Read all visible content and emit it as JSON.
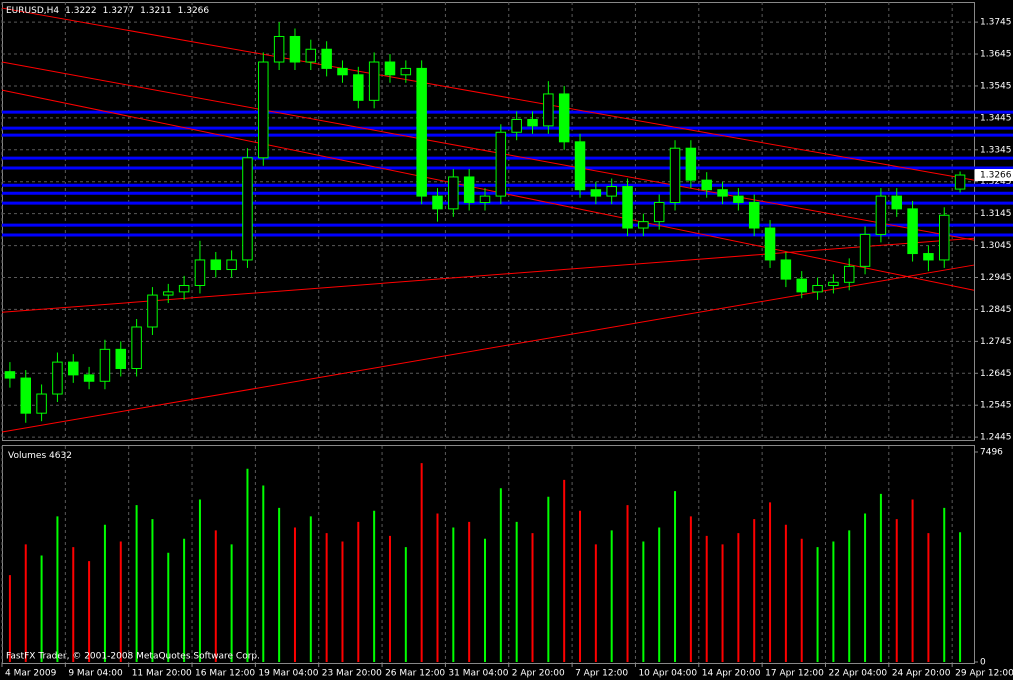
{
  "chart_data": [
    {
      "type": "candlestick",
      "title": "EURUSD,H4",
      "header_values": [
        1.3222,
        1.3277,
        1.3211,
        1.3266
      ],
      "color": "#00ff00",
      "categories": [
        "4 Mar 2009",
        null,
        null,
        null,
        "9 Mar 04:00",
        null,
        null,
        null,
        "11 Mar 20:00",
        null,
        null,
        null,
        "16 Mar 12:00",
        null,
        null,
        null,
        "19 Mar 04:00",
        null,
        null,
        null,
        "23 Mar 20:00",
        null,
        null,
        null,
        "26 Mar 12:00",
        null,
        null,
        null,
        "31 Mar 04:00",
        null,
        null,
        null,
        "2 Apr 20:00",
        null,
        null,
        null,
        "7 Apr 12:00",
        null,
        null,
        null,
        "10 Apr 04:00",
        null,
        null,
        null,
        "14 Apr 20:00",
        null,
        null,
        null,
        "17 Apr 12:00",
        null,
        null,
        null,
        "22 Apr 04:00",
        null,
        null,
        null,
        "24 Apr 20:00",
        null,
        null,
        null,
        "29 Apr 12:00"
      ],
      "open": [
        1.265,
        1.263,
        1.252,
        1.258,
        1.268,
        1.264,
        1.262,
        1.272,
        1.266,
        1.279,
        1.289,
        1.29,
        1.292,
        1.3,
        1.297,
        1.3,
        1.332,
        1.362,
        1.37,
        1.362,
        1.366,
        1.36,
        1.358,
        1.35,
        1.362,
        1.358,
        1.36,
        1.32,
        1.316,
        1.326,
        1.318,
        1.32,
        1.34,
        1.344,
        1.342,
        1.352,
        1.337,
        1.322,
        1.32,
        1.323,
        1.31,
        1.312,
        1.318,
        1.335,
        1.325,
        1.322,
        1.32,
        1.318,
        1.31,
        1.3,
        1.294,
        1.29,
        1.292,
        1.293,
        1.298,
        1.308,
        1.32,
        1.316,
        1.302,
        1.3,
        1.3222
      ],
      "high": [
        1.268,
        1.2655,
        1.261,
        1.271,
        1.2705,
        1.2665,
        1.275,
        1.2745,
        1.2815,
        1.2915,
        1.2925,
        1.295,
        1.306,
        1.3025,
        1.303,
        1.335,
        1.365,
        1.3745,
        1.3725,
        1.369,
        1.3685,
        1.3625,
        1.3605,
        1.365,
        1.3645,
        1.3625,
        1.3625,
        1.3225,
        1.3285,
        1.3285,
        1.3225,
        1.3425,
        1.3465,
        1.3465,
        1.356,
        1.3545,
        1.3395,
        1.3245,
        1.3255,
        1.3255,
        1.3145,
        1.3205,
        1.3375,
        1.3375,
        1.3275,
        1.3245,
        1.3225,
        1.3205,
        1.3125,
        1.3025,
        1.2965,
        1.2945,
        1.2955,
        1.3005,
        1.3105,
        1.3225,
        1.3225,
        1.3185,
        1.3045,
        1.3165,
        1.3277
      ],
      "low": [
        1.26,
        1.249,
        1.2495,
        1.2555,
        1.2615,
        1.2595,
        1.2595,
        1.2635,
        1.2635,
        1.2765,
        1.2865,
        1.2875,
        1.2895,
        1.2945,
        1.2945,
        1.2975,
        1.3295,
        1.3595,
        1.3595,
        1.3595,
        1.3575,
        1.3555,
        1.3475,
        1.3475,
        1.3555,
        1.3555,
        1.3175,
        1.312,
        1.3135,
        1.3155,
        1.3155,
        1.3175,
        1.3375,
        1.3395,
        1.3395,
        1.3345,
        1.3195,
        1.3175,
        1.3175,
        1.3075,
        1.3075,
        1.3095,
        1.3155,
        1.3225,
        1.3195,
        1.3175,
        1.3155,
        1.3075,
        1.2975,
        1.2915,
        1.288,
        1.2875,
        1.2895,
        1.2905,
        1.2955,
        1.3055,
        1.3135,
        1.2995,
        1.2965,
        1.2975,
        1.3211
      ],
      "close": [
        1.263,
        1.252,
        1.258,
        1.268,
        1.264,
        1.262,
        1.272,
        1.266,
        1.279,
        1.289,
        1.29,
        1.292,
        1.3,
        1.297,
        1.3,
        1.332,
        1.362,
        1.37,
        1.362,
        1.366,
        1.36,
        1.358,
        1.35,
        1.362,
        1.358,
        1.36,
        1.32,
        1.316,
        1.326,
        1.318,
        1.32,
        1.34,
        1.344,
        1.342,
        1.352,
        1.337,
        1.322,
        1.32,
        1.323,
        1.31,
        1.312,
        1.318,
        1.335,
        1.325,
        1.322,
        1.32,
        1.318,
        1.31,
        1.3,
        1.294,
        1.29,
        1.292,
        1.293,
        1.298,
        1.308,
        1.32,
        1.316,
        1.302,
        1.3,
        1.314,
        1.3266
      ],
      "ylim": [
        1.2436,
        1.3808
      ],
      "yticks": [
        1.2445,
        1.2545,
        1.2645,
        1.2745,
        1.2845,
        1.2945,
        1.3045,
        1.3145,
        1.3245,
        1.3345,
        1.3445,
        1.3545,
        1.3645,
        1.3745
      ],
      "grid": true,
      "levels": [
        1.3463,
        1.3413,
        1.3391,
        1.3319,
        1.3288,
        1.3234,
        1.3209,
        1.3178,
        1.3109,
        1.3078
      ],
      "level_color": "#0000ff",
      "trendlines": [
        {
          "start": 1.3789,
          "end": 1.325
        },
        {
          "start": 1.362,
          "end": 1.3062
        },
        {
          "start": 1.3532,
          "end": 1.2905
        },
        {
          "start": 1.2836,
          "end": 1.3068
        },
        {
          "start": 1.2461,
          "end": 1.2984
        }
      ],
      "trendline_color": "#ff0000"
    },
    {
      "type": "bar",
      "title": "Volumes",
      "up_color": "#00ff00",
      "down_color": "#ff0000",
      "values": [
        3100,
        4200,
        3800,
        5200,
        4100,
        3600,
        4900,
        4300,
        5600,
        5100,
        3900,
        4400,
        5800,
        4700,
        4200,
        6900,
        6300,
        5500,
        4800,
        5200,
        4600,
        4300,
        5000,
        5400,
        4500,
        4100,
        7100,
        5300,
        4800,
        5000,
        4400,
        6200,
        5000,
        4600,
        5900,
        6500,
        5400,
        4200,
        4700,
        5600,
        4300,
        4800,
        6100,
        5200,
        4500,
        4200,
        4600,
        5100,
        5700,
        4900,
        4400,
        4100,
        4300,
        4700,
        5300,
        6000,
        5100,
        5800,
        4600,
        5500,
        4632
      ],
      "ylim": [
        0,
        7496
      ],
      "yticks": [
        7496,
        0
      ]
    }
  ],
  "footer": "FastFX Trader, © 2001-2008 MetaQuotes Software Corp."
}
